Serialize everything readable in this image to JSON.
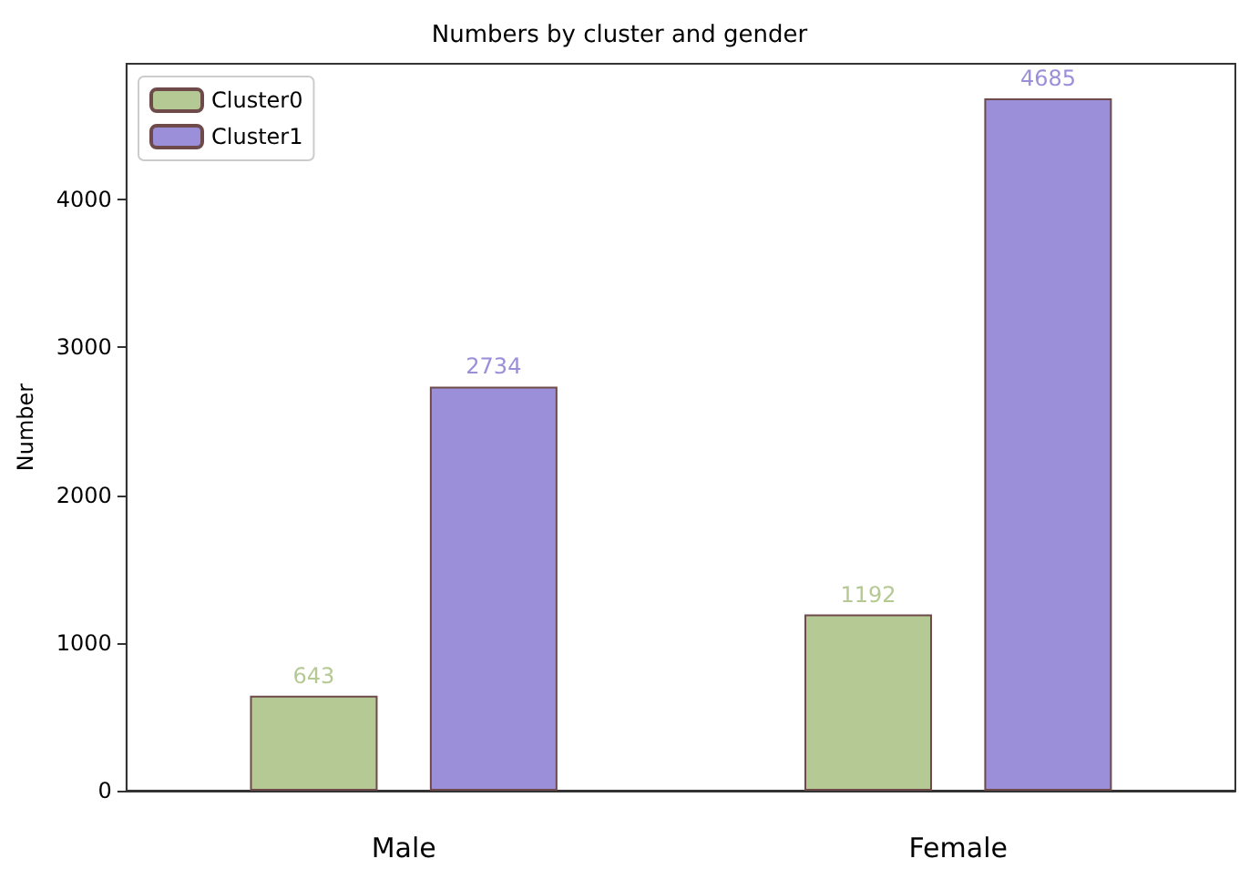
{
  "chart_data": {
    "type": "bar",
    "title": "Numbers by cluster and gender",
    "ylabel": "Number",
    "categories": [
      "Male",
      "Female"
    ],
    "series": [
      {
        "name": "Cluster0",
        "color": "#b5c994",
        "values": [
          643,
          1192
        ]
      },
      {
        "name": "Cluster1",
        "color": "#9b8fd9",
        "values": [
          2734,
          4685
        ]
      }
    ],
    "ylim": [
      0,
      4919
    ],
    "yticks": [
      0,
      1000,
      2000,
      3000,
      4000
    ],
    "data_labels": true,
    "legend": "top left",
    "grid": false
  }
}
